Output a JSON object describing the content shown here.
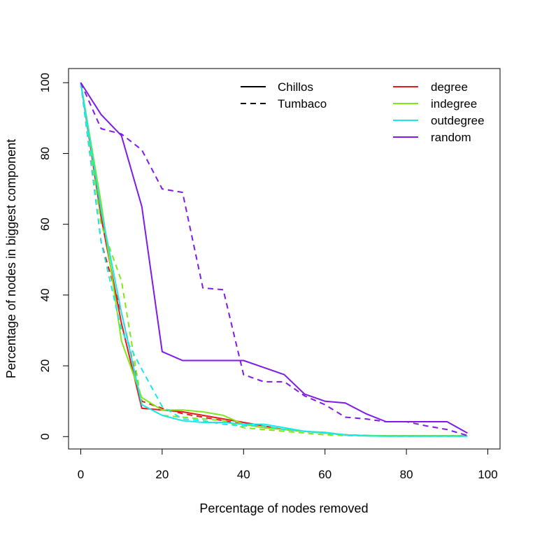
{
  "chart_data": {
    "type": "line",
    "title": "",
    "xlabel": "Percentage of nodes removed",
    "ylabel": "Percentage of nodes in biggest component",
    "xlim": [
      -3,
      103
    ],
    "ylim": [
      -3.5,
      104
    ],
    "xticks": [
      "0",
      "20",
      "40",
      "60",
      "80",
      "100"
    ],
    "yticks": [
      "0",
      "20",
      "40",
      "60",
      "80",
      "100"
    ],
    "grid": false,
    "x": [
      0,
      5,
      10,
      15,
      20,
      25,
      30,
      35,
      40,
      45,
      50,
      55,
      60,
      65,
      70,
      75,
      80,
      85,
      90,
      95
    ],
    "linetype_legend": [
      {
        "label": "Chillos",
        "style": "solid"
      },
      {
        "label": "Tumbaco",
        "style": "dashed"
      }
    ],
    "color_legend": [
      {
        "label": "degree",
        "color": "#E41A1C"
      },
      {
        "label": "indegree",
        "color": "#80E81A"
      },
      {
        "label": "outdegree",
        "color": "#1AE8E8"
      },
      {
        "label": "random",
        "color": "#7F1AE8"
      }
    ],
    "series": [
      {
        "name": "degree (Chillos)",
        "color": "#E41A1C",
        "style": "solid",
        "values": [
          100,
          62,
          32,
          8,
          7.5,
          7,
          6,
          5,
          4,
          3,
          2,
          1.5,
          1,
          0.5,
          0.3,
          0.2,
          0.2,
          0.2,
          0.2,
          0.2
        ]
      },
      {
        "name": "degree (Tumbaco)",
        "color": "#E41A1C",
        "style": "dashed",
        "values": [
          100,
          55,
          35,
          10,
          8,
          6.5,
          5.5,
          4.5,
          3.5,
          2.5,
          2,
          1.5,
          1,
          0.5,
          0.3,
          0.2,
          0.2,
          0.2,
          0.2,
          0.2
        ]
      },
      {
        "name": "indegree (Chillos)",
        "color": "#80E81A",
        "style": "solid",
        "values": [
          100,
          66,
          27,
          11,
          7.5,
          7.5,
          7,
          6,
          3.5,
          2.5,
          2,
          1.5,
          1,
          0.5,
          0.3,
          0.2,
          0.2,
          0.2,
          0.2,
          0.2
        ]
      },
      {
        "name": "indegree (Tumbaco)",
        "color": "#80E81A",
        "style": "dashed",
        "values": [
          100,
          60,
          44,
          9,
          6,
          5.5,
          5,
          4.5,
          2.5,
          2,
          1.5,
          1,
          0.5,
          0.3,
          0.2,
          0.2,
          0.2,
          0.2,
          0.2,
          0.2
        ]
      },
      {
        "name": "outdegree (Chillos)",
        "color": "#1AE8E8",
        "style": "solid",
        "values": [
          100,
          64,
          35,
          9,
          6,
          4.5,
          4,
          4,
          3.5,
          3.5,
          2.5,
          1.5,
          1.2,
          0.5,
          0.2,
          0.1,
          0.1,
          0.1,
          0.1,
          0.1
        ]
      },
      {
        "name": "outdegree (Tumbaco)",
        "color": "#1AE8E8",
        "style": "dashed",
        "values": [
          100,
          55,
          30,
          19,
          8.5,
          5,
          4.5,
          3.5,
          3,
          3,
          2,
          1.5,
          1,
          0.5,
          0.2,
          0.1,
          0.1,
          0.1,
          0.1,
          0.1
        ]
      },
      {
        "name": "random (Chillos)",
        "color": "#7F1AE8",
        "style": "solid",
        "values": [
          100,
          91,
          85,
          65,
          24,
          21.5,
          21.5,
          21.5,
          21.5,
          19.5,
          17.5,
          12,
          10,
          9.5,
          6.5,
          4.2,
          4.2,
          4.2,
          4.2,
          1
        ]
      },
      {
        "name": "random (Tumbaco)",
        "color": "#7F1AE8",
        "style": "dashed",
        "values": [
          100,
          87,
          85.5,
          81,
          70,
          69,
          42,
          41.5,
          17.5,
          15.5,
          15.5,
          11.5,
          9,
          5.5,
          5,
          4.2,
          4.2,
          3,
          2,
          0.3
        ]
      }
    ]
  }
}
